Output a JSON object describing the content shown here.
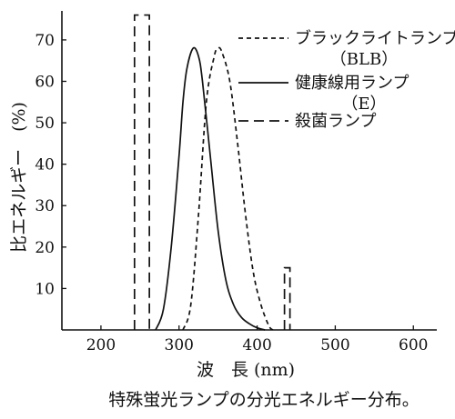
{
  "chart_data": {
    "type": "line",
    "xlabel": "波　長 (nm)",
    "ylabel": "比エネルギー　(%)",
    "caption": "特殊蛍光ランプの分光エネルギー分布。",
    "xlim": [
      150,
      630
    ],
    "ylim": [
      0,
      77
    ],
    "xticks": [
      200,
      300,
      400,
      500,
      600
    ],
    "yticks": [
      10,
      20,
      30,
      40,
      50,
      60,
      70
    ],
    "legend_position": "top-right",
    "series": [
      {
        "name": "ブラックライトランプ",
        "name_line2": "（BLB）",
        "style": "short-dash",
        "x": [
          305,
          315,
          325,
          335,
          345,
          350,
          355,
          365,
          375,
          385,
          395,
          405,
          415,
          420
        ],
        "y": [
          0,
          6,
          28,
          55,
          66,
          68,
          67,
          60,
          45,
          28,
          14,
          6,
          1,
          0
        ]
      },
      {
        "name": "健康線用ランプ",
        "name_line2": "（E）",
        "style": "solid",
        "x": [
          270,
          280,
          290,
          300,
          305,
          310,
          318,
          325,
          330,
          340,
          350,
          360,
          370,
          380,
          390,
          400,
          410
        ],
        "y": [
          0,
          5,
          20,
          42,
          55,
          63,
          68,
          66,
          60,
          42,
          24,
          12,
          6,
          3,
          1.5,
          0.5,
          0
        ]
      },
      {
        "name": "殺菌ランプ",
        "style": "long-dash",
        "lines": [
          {
            "x": 253.7,
            "ymax": 76,
            "x_left": 243,
            "x_right": 262
          },
          {
            "x": 438,
            "ymax": 15,
            "x_left": 435,
            "x_right": 442
          }
        ]
      }
    ]
  }
}
